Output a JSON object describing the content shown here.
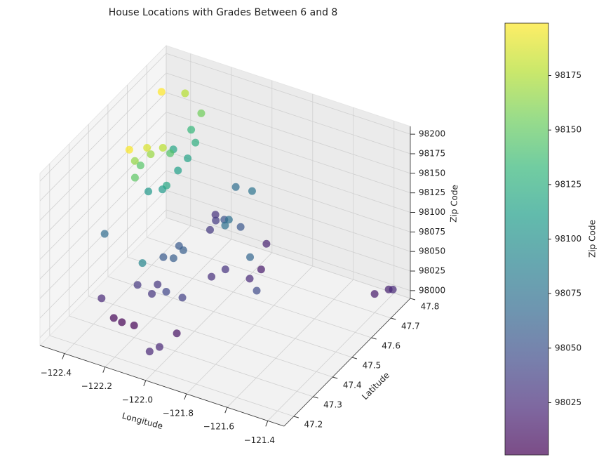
{
  "chart_data": {
    "type": "scatter3d",
    "title": "House Locations with Grades Between 6 and 8",
    "xlabel": "Longitude",
    "ylabel": "Latitude",
    "zlabel": "Zip Code",
    "xlim": [
      -122.52,
      -121.32
    ],
    "ylim": [
      47.15,
      47.8
    ],
    "zlim": [
      97990,
      98210
    ],
    "xticks": [
      {
        "value": -122.4,
        "label": "−122.4"
      },
      {
        "value": -122.2,
        "label": "−122.2"
      },
      {
        "value": -122.0,
        "label": "−122.0"
      },
      {
        "value": -121.8,
        "label": "−121.8"
      },
      {
        "value": -121.6,
        "label": "−121.6"
      },
      {
        "value": -121.4,
        "label": "−121.4"
      }
    ],
    "yticks": [
      47.2,
      47.3,
      47.4,
      47.5,
      47.6,
      47.7,
      47.8
    ],
    "zticks": [
      98000,
      98025,
      98050,
      98075,
      98100,
      98125,
      98150,
      98175,
      98200
    ],
    "grid": true,
    "colormap": "viridis",
    "alpha": 0.7,
    "x": [
      -122.27,
      -122.21,
      -122.31,
      -122.0,
      -121.91,
      -121.97,
      -121.98,
      -122.37,
      -121.89,
      -122.03,
      -122.24,
      -122.0,
      -122.18,
      -122.19,
      -122.26,
      -122.19,
      -122.2,
      -122.03,
      -122.1,
      -121.76,
      -122.12,
      -122.03,
      -122.2,
      -122.18,
      -122.15,
      -122.14,
      -121.85,
      -122.46,
      -122.14,
      -122.04,
      -122.03,
      -122.05,
      -122.15,
      -122.35,
      -122.3,
      -122.3,
      -122.3,
      -122.38,
      -122.27,
      -122.3,
      -122.34,
      -122.3,
      -122.36,
      -122.33,
      -122.3,
      -122.34,
      -122.3,
      -122.37,
      -122.25,
      -122.28,
      -122.31,
      -122.4,
      -121.4,
      -121.35,
      -121.32,
      -122.0
    ],
    "y": [
      47.31,
      47.31,
      47.31,
      47.31,
      47.65,
      47.74,
      47.2,
      47.31,
      47.57,
      47.52,
      47.76,
      47.56,
      47.37,
      47.41,
      47.38,
      47.68,
      47.72,
      47.37,
      47.36,
      47.47,
      47.68,
      47.67,
      47.45,
      47.51,
      47.45,
      47.49,
      47.53,
      47.42,
      47.76,
      47.62,
      47.59,
      47.75,
      47.29,
      47.53,
      47.55,
      47.63,
      47.68,
      47.69,
      47.54,
      47.72,
      47.74,
      47.59,
      47.5,
      47.44,
      47.75,
      47.45,
      47.49,
      47.74,
      47.5,
      47.45,
      47.39,
      47.65,
      47.7,
      47.72,
      47.71,
      47.17
    ],
    "z": [
      98001,
      98002,
      98003,
      98010,
      98014,
      98019,
      98022,
      98023,
      98024,
      98027,
      98028,
      98029,
      98030,
      98031,
      98032,
      98033,
      98034,
      98038,
      98042,
      98045,
      98052,
      98053,
      98055,
      98056,
      98058,
      98059,
      98065,
      98070,
      98072,
      98074,
      98075,
      98077,
      98092,
      98106,
      98108,
      98112,
      98115,
      98117,
      98118,
      98125,
      98133,
      98144,
      98146,
      98148,
      98155,
      98166,
      98168,
      98177,
      98178,
      98188,
      98198,
      98199,
      98014,
      98019,
      98024,
      98022
    ],
    "colorbar": {
      "label": "Zip Code",
      "lim": [
        98001,
        98199
      ],
      "ticks": [
        98025,
        98050,
        98075,
        98100,
        98125,
        98150,
        98175
      ]
    }
  }
}
